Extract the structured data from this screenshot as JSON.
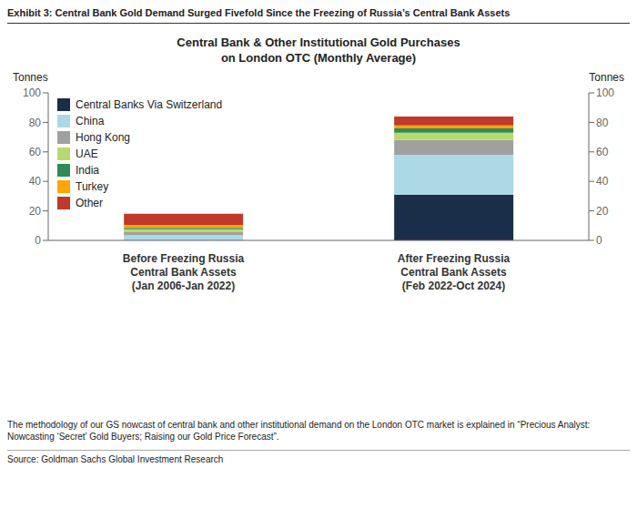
{
  "chart_data": {
    "type": "bar",
    "stacked": true,
    "title": "Central Bank & Other Institutional Gold Purchases\non London OTC (Monthly Average)",
    "annotations": [
      "Exhibit 3: Central Bank Gold Demand Surged Fivefold Since the Freezing of Russia’s Central Bank Assets",
      "The methodology of our GS nowcast of central bank and other institutional demand on the London OTC market is explained in “Precious Analyst:\nNowcasting ‘Secret’ Gold Buyers; Raising our Gold Price Forecast”.",
      "Source: Goldman Sachs Global Investment Research"
    ],
    "ylabel": "Tonnes",
    "y2label": "Tonnes",
    "ylim": [
      0,
      100
    ],
    "yticks": [
      0,
      20,
      40,
      60,
      80,
      100
    ],
    "y2lim": [
      0,
      100
    ],
    "y2ticks": [
      0,
      20,
      40,
      60,
      80,
      100
    ],
    "grid": false,
    "legend": "upper left",
    "categories": [
      "Before Freezing Russia\nCentral Bank Assets\n(Jan 2006-Jan 2022)",
      "After Freezing Russia\nCentral Bank Assets\n(Feb 2022-Oct 2024)"
    ],
    "series": [
      {
        "name": "Central Banks Via Switzerland",
        "color": "#1a2e4a",
        "values": [
          0.0,
          31.0
        ]
      },
      {
        "name": "China",
        "color": "#add8e6",
        "values": [
          3.5,
          27.0
        ]
      },
      {
        "name": "Hong Kong",
        "color": "#a0a0a0",
        "values": [
          2.0,
          10.0
        ]
      },
      {
        "name": "UAE",
        "color": "#b8d96e",
        "values": [
          2.0,
          5.0
        ]
      },
      {
        "name": "India",
        "color": "#2e8b57",
        "values": [
          1.0,
          3.0
        ]
      },
      {
        "name": "Turkey",
        "color": "#ffa500",
        "values": [
          2.0,
          2.0
        ]
      },
      {
        "name": "Other",
        "color": "#c0392b",
        "values": [
          7.5,
          6.0
        ]
      }
    ]
  }
}
